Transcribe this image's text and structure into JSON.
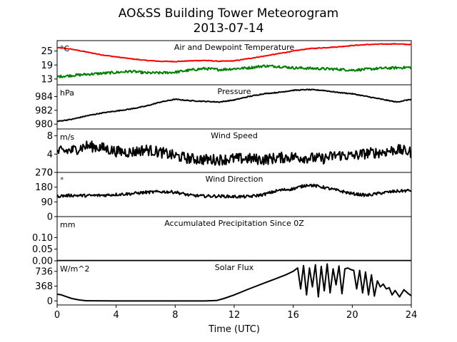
{
  "figure": {
    "title": "AO&SS Building Tower Meteorogram",
    "subtitle": "2013-07-14",
    "xlabel": "Time (UTC)",
    "x_ticks": [
      "0",
      "4",
      "8",
      "12",
      "16",
      "20",
      "24"
    ]
  },
  "chart_data": [
    {
      "type": "line",
      "title": "Air and Dewpoint Temperature",
      "unit": "°C",
      "xlim": [
        0,
        24
      ],
      "ylim": [
        10.5,
        29.5
      ],
      "y_ticks": [
        13,
        19,
        25
      ],
      "y_tick_labels": [
        "13",
        "19",
        "25"
      ],
      "series": [
        {
          "color": "#ff0000",
          "noise": 0.15,
          "x": [
            0,
            1,
            2,
            3,
            4,
            5,
            6,
            7,
            8,
            9,
            10,
            11,
            12,
            13,
            14,
            15,
            16,
            17,
            18,
            19,
            20,
            21,
            22,
            23,
            24
          ],
          "values": [
            26.5,
            25.8,
            24.6,
            23.4,
            22.5,
            21.7,
            21.0,
            20.6,
            20.5,
            20.8,
            21.0,
            20.6,
            20.8,
            21.8,
            22.8,
            23.9,
            25.0,
            26.0,
            26.4,
            26.8,
            27.4,
            27.8,
            28.0,
            28.1,
            27.8
          ]
        },
        {
          "color": "#008000",
          "noise": 0.55,
          "x": [
            0,
            1,
            2,
            3,
            4,
            5,
            6,
            7,
            8,
            9,
            10,
            11,
            12,
            13,
            14,
            15,
            16,
            17,
            18,
            19,
            20,
            21,
            22,
            23,
            24
          ],
          "values": [
            14.0,
            14.5,
            15.0,
            15.4,
            15.8,
            16.3,
            15.6,
            15.6,
            15.9,
            16.8,
            17.5,
            17.0,
            17.4,
            17.8,
            18.6,
            18.4,
            17.8,
            17.6,
            17.4,
            17.2,
            16.8,
            17.2,
            17.6,
            17.8,
            18.0
          ]
        }
      ]
    },
    {
      "type": "line",
      "title": "Pressure",
      "unit": "hPa",
      "xlim": [
        0,
        24
      ],
      "ylim": [
        979.3,
        985.7
      ],
      "y_ticks": [
        980,
        982,
        984
      ],
      "y_tick_labels": [
        "980",
        "982",
        "984"
      ],
      "series": [
        {
          "color": "#000000",
          "noise": 0.06,
          "x": [
            0,
            1,
            2,
            3,
            4,
            5,
            6,
            7,
            8,
            9,
            10,
            11,
            12,
            13,
            14,
            15,
            16,
            17,
            18,
            19,
            20,
            21,
            22,
            23,
            24
          ],
          "values": [
            980.4,
            980.7,
            981.2,
            981.6,
            981.9,
            982.2,
            982.6,
            983.2,
            983.6,
            983.4,
            983.3,
            983.2,
            983.5,
            984.0,
            984.4,
            984.6,
            984.9,
            985.0,
            984.9,
            984.6,
            984.4,
            984.0,
            983.6,
            983.2,
            983.6
          ]
        }
      ]
    },
    {
      "type": "line",
      "title": "Wind Speed",
      "unit": "m/s",
      "xlim": [
        0,
        24
      ],
      "ylim": [
        0,
        9.5
      ],
      "y_ticks": [
        0,
        4,
        8
      ],
      "y_tick_labels": [
        "0",
        "4",
        "8"
      ],
      "series": [
        {
          "color": "#000000",
          "noise": 1.2,
          "x": [
            0,
            1,
            2,
            3,
            4,
            5,
            6,
            7,
            8,
            9,
            10,
            11,
            12,
            13,
            14,
            15,
            16,
            17,
            18,
            19,
            20,
            21,
            22,
            23,
            24
          ],
          "values": [
            4.5,
            4.8,
            5.8,
            5.4,
            4.6,
            4.4,
            5.0,
            4.4,
            3.6,
            3.0,
            2.8,
            2.8,
            3.0,
            3.0,
            2.8,
            3.2,
            3.4,
            3.2,
            3.0,
            3.8,
            3.6,
            4.2,
            4.4,
            5.0,
            4.4
          ]
        }
      ]
    },
    {
      "type": "line",
      "title": "Wind Direction",
      "unit": "°",
      "xlim": [
        0,
        24
      ],
      "ylim": [
        0,
        270
      ],
      "y_ticks": [
        0,
        90,
        180,
        270
      ],
      "y_tick_labels": [
        "0",
        "90",
        "180",
        "270"
      ],
      "series": [
        {
          "color": "#000000",
          "noise": 9,
          "x": [
            0,
            1,
            2,
            3,
            4,
            5,
            6,
            7,
            8,
            9,
            10,
            11,
            12,
            13,
            14,
            15,
            16,
            17,
            18,
            19,
            20,
            21,
            22,
            23,
            24
          ],
          "values": [
            125,
            130,
            128,
            130,
            135,
            140,
            148,
            152,
            150,
            130,
            125,
            125,
            122,
            122,
            135,
            160,
            170,
            195,
            180,
            160,
            140,
            130,
            145,
            155,
            160
          ]
        }
      ]
    },
    {
      "type": "line",
      "title": "Accumulated Precipitation Since 0Z",
      "unit": "mm",
      "xlim": [
        0,
        24
      ],
      "ylim": [
        0,
        0.19
      ],
      "y_ticks": [
        0.0,
        0.05,
        0.1
      ],
      "y_tick_labels": [
        "0.00",
        "0.05",
        "0.10"
      ],
      "series": [
        {
          "color": "#000000",
          "noise": 0,
          "x": [
            0,
            24
          ],
          "values": [
            0,
            0
          ]
        }
      ]
    },
    {
      "type": "line",
      "title": "Solar Flux",
      "unit": "W/m^2",
      "xlim": [
        0,
        24
      ],
      "ylim": [
        -100,
        1000
      ],
      "y_ticks": [
        0,
        368,
        736
      ],
      "y_tick_labels": [
        "0",
        "368",
        "736"
      ],
      "series": [
        {
          "color": "#000000",
          "noise": 0,
          "x": [
            0,
            0.3,
            0.6,
            1.0,
            1.5,
            2,
            4,
            6,
            8,
            10,
            10.8,
            11.3,
            12,
            13,
            14,
            15,
            15.5,
            16,
            16.3,
            16.5,
            16.7,
            16.9,
            17.1,
            17.3,
            17.5,
            17.7,
            17.9,
            18.1,
            18.3,
            18.5,
            18.7,
            18.9,
            19.1,
            19.3,
            19.5,
            19.7,
            19.9,
            20.1,
            20.3,
            20.5,
            20.7,
            20.9,
            21.1,
            21.3,
            21.5,
            21.7,
            21.9,
            22.1,
            22.3,
            22.5,
            22.7,
            22.9,
            23.2,
            23.5,
            23.8,
            24
          ],
          "values": [
            170,
            150,
            110,
            60,
            25,
            5,
            0,
            0,
            0,
            0,
            10,
            60,
            150,
            300,
            440,
            580,
            650,
            740,
            820,
            300,
            880,
            150,
            820,
            350,
            900,
            100,
            860,
            250,
            920,
            200,
            800,
            400,
            870,
            180,
            800,
            820,
            780,
            760,
            300,
            760,
            200,
            720,
            150,
            650,
            120,
            500,
            350,
            420,
            300,
            330,
            150,
            260,
            100,
            280,
            180,
            130
          ]
        }
      ]
    }
  ]
}
